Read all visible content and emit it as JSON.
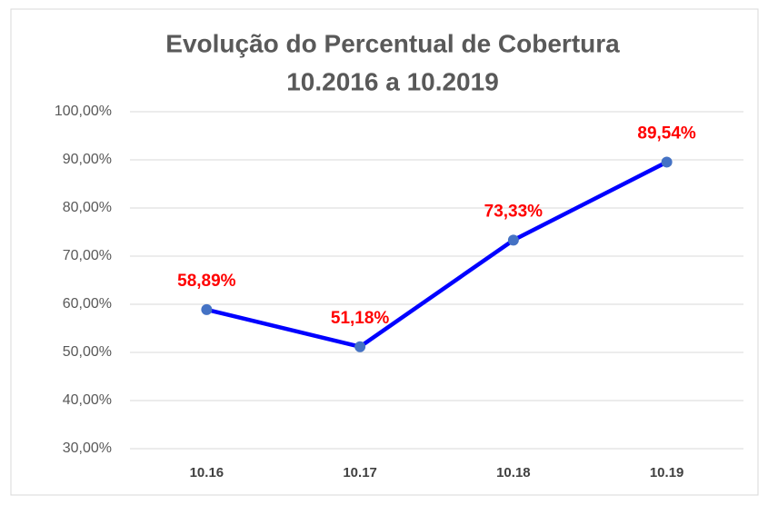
{
  "chart_data": {
    "type": "line",
    "title": "Evolução do Percentual de Cobertura",
    "subtitle": "10.2016 a 10.2019",
    "categories": [
      "10.16",
      "10.17",
      "10.18",
      "10.19"
    ],
    "series": [
      {
        "color": "#0000ff",
        "marker_color": "#4472c4",
        "values": [
          58.89,
          51.18,
          73.33,
          89.54
        ],
        "value_labels": [
          "58,89%",
          "51,18%",
          "73,33%",
          "89,54%"
        ]
      }
    ],
    "ylim": [
      30,
      100
    ],
    "yticks": [
      {
        "value": 30,
        "label": "30,00%"
      },
      {
        "value": 40,
        "label": "40,00%"
      },
      {
        "value": 50,
        "label": "50,00%"
      },
      {
        "value": 60,
        "label": "60,00%"
      },
      {
        "value": 70,
        "label": "70,00%"
      },
      {
        "value": 80,
        "label": "80,00%"
      },
      {
        "value": 90,
        "label": "90,00%"
      },
      {
        "value": 100,
        "label": "100,00%"
      }
    ],
    "grid": true
  }
}
